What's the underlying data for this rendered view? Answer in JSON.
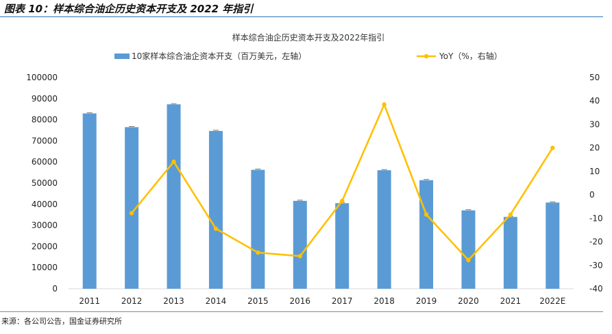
{
  "header": {
    "figure_title": "图表 10：样本综合油企历史资本开支及 2022 年指引"
  },
  "source": "来源：各公司公告，国金证券研究所",
  "colors": {
    "bar": "#5b9bd5",
    "line": "#ffc000",
    "rule": "#2e75b6"
  },
  "chart_data": {
    "type": "bar+line",
    "title": "样本综合油企历史资本开支及2022年指引",
    "categories": [
      "2011",
      "2012",
      "2013",
      "2014",
      "2015",
      "2016",
      "2017",
      "2018",
      "2019",
      "2020",
      "2021",
      "2022E"
    ],
    "series": [
      {
        "name": "10家样本综合油企资本开支（百万美元，左轴）",
        "type": "bar",
        "axis": "left",
        "values": [
          83000,
          76500,
          87300,
          74700,
          56300,
          41600,
          40500,
          56100,
          51400,
          37100,
          34000,
          40800
        ]
      },
      {
        "name": "YoY（%，右轴）",
        "type": "line",
        "axis": "right",
        "values": [
          null,
          -7.8,
          14.1,
          -14.4,
          -24.6,
          -26.1,
          -2.6,
          38.5,
          -8.4,
          -27.8,
          -8.4,
          20.0
        ]
      }
    ],
    "y_left": {
      "min": 0,
      "max": 100000,
      "ticks": [
        "0",
        "10000",
        "20000",
        "30000",
        "40000",
        "50000",
        "60000",
        "70000",
        "80000",
        "90000",
        "100000"
      ]
    },
    "y_right": {
      "min": -40,
      "max": 50,
      "ticks": [
        "-40",
        "-30",
        "-20",
        "-10",
        "0",
        "10",
        "20",
        "30",
        "40",
        "50"
      ]
    },
    "legend_position": "top",
    "grid": false
  }
}
